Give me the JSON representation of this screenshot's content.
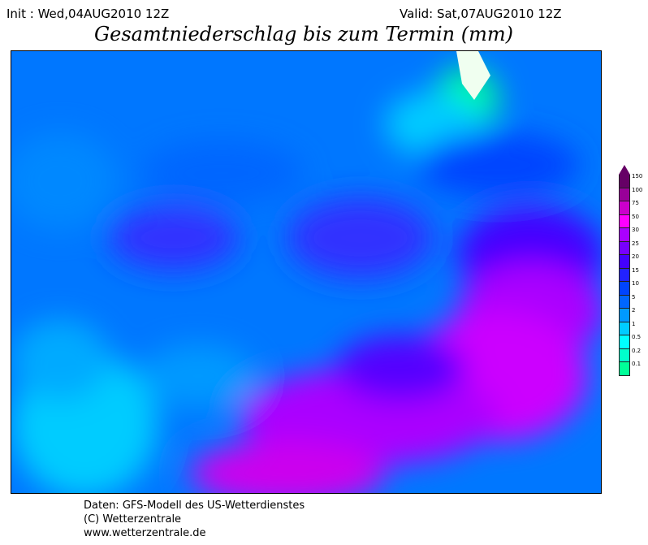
{
  "header": {
    "init": "Init : Wed,04AUG2010 12Z",
    "valid": "Valid: Sat,07AUG2010 12Z",
    "title": "Gesamtniederschlag bis zum Termin (mm)"
  },
  "legend": {
    "levels": [
      "0.1",
      "0.2",
      "0.5",
      "1",
      "2",
      "5",
      "10",
      "15",
      "20",
      "25",
      "30",
      "50",
      "75",
      "100",
      "150"
    ],
    "colors": [
      "#00ff99",
      "#00ffcc",
      "#00ffff",
      "#00ccff",
      "#0099ff",
      "#0066ff",
      "#0044ff",
      "#2222ff",
      "#4400ff",
      "#7700ff",
      "#aa00ff",
      "#ff00ff",
      "#cc00cc",
      "#990099",
      "#660066"
    ]
  },
  "footer": {
    "line1": "Daten: GFS-Modell des US-Wetterdienstes",
    "line2": "(C) Wetterzentrale",
    "line3": "www.wetterzentrale.de"
  }
}
